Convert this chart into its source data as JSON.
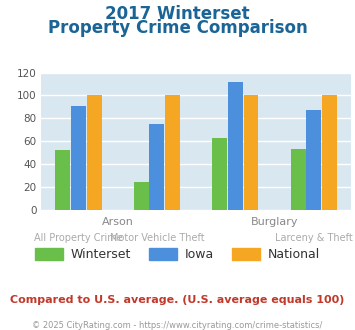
{
  "title_line1": "2017 Winterset",
  "title_line2": "Property Crime Comparison",
  "category_labels_top": [
    "",
    "Arson",
    "Burglary",
    ""
  ],
  "category_labels_bottom": [
    "All Property Crime",
    "Motor Vehicle Theft",
    "",
    "Larceny & Theft"
  ],
  "winterset": [
    52,
    24,
    63,
    53
  ],
  "iowa": [
    91,
    75,
    112,
    87
  ],
  "national": [
    100,
    100,
    100,
    100
  ],
  "winterset_color": "#6abf4b",
  "iowa_color": "#4c8fdd",
  "national_color": "#f5a623",
  "ylim": [
    0,
    120
  ],
  "yticks": [
    0,
    20,
    40,
    60,
    80,
    100,
    120
  ],
  "plot_bg_color": "#d9e8f0",
  "footer_text": "Compared to U.S. average. (U.S. average equals 100)",
  "copyright_text": "© 2025 CityRating.com - https://www.cityrating.com/crime-statistics/",
  "title_color": "#1a6496",
  "footer_color": "#c0392b",
  "copyright_color": "#999999",
  "legend_labels": [
    "Winterset",
    "Iowa",
    "National"
  ]
}
